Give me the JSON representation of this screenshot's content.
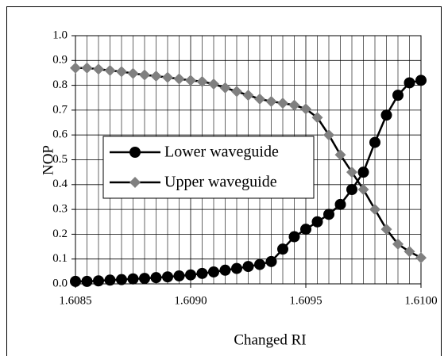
{
  "chart_data": {
    "type": "line",
    "x_label": "Changed RI",
    "y_label": "NOP",
    "x": [
      1.6085,
      1.60855,
      1.6086,
      1.60865,
      1.6087,
      1.60875,
      1.6088,
      1.60885,
      1.6089,
      1.60895,
      1.609,
      1.60905,
      1.6091,
      1.60915,
      1.6092,
      1.60925,
      1.6093,
      1.60935,
      1.6094,
      1.60945,
      1.6095,
      1.60955,
      1.6096,
      1.60965,
      1.6097,
      1.60975,
      1.6098,
      1.60985,
      1.6099,
      1.60995,
      1.61
    ],
    "series": [
      {
        "name": "Lower waveguide",
        "color": "#000000",
        "marker": "circle",
        "values": [
          0.01,
          0.01,
          0.012,
          0.015,
          0.017,
          0.02,
          0.022,
          0.025,
          0.028,
          0.032,
          0.036,
          0.042,
          0.048,
          0.055,
          0.062,
          0.07,
          0.078,
          0.09,
          0.14,
          0.19,
          0.22,
          0.25,
          0.28,
          0.32,
          0.38,
          0.45,
          0.57,
          0.68,
          0.76,
          0.81,
          0.82
        ]
      },
      {
        "name": "Upper waveguide",
        "color": "#808080",
        "marker": "diamond",
        "values": [
          0.87,
          0.87,
          0.865,
          0.86,
          0.855,
          0.848,
          0.842,
          0.837,
          0.832,
          0.826,
          0.82,
          0.815,
          0.805,
          0.79,
          0.775,
          0.76,
          0.745,
          0.735,
          0.728,
          0.72,
          0.705,
          0.67,
          0.6,
          0.52,
          0.45,
          0.38,
          0.3,
          0.22,
          0.16,
          0.13,
          0.105
        ]
      }
    ],
    "xlim": [
      1.6085,
      1.61
    ],
    "xticks": [
      1.6085,
      {
        "value": 1.609,
        "label": "1.6090"
      },
      1.6095,
      {
        "value": 1.61,
        "label": "1.6100"
      }
    ],
    "ylim": [
      0,
      1
    ],
    "yticks": [
      {
        "value": 0,
        "label": "0.0"
      },
      0.1,
      0.2,
      0.3,
      0.4,
      0.5,
      0.6,
      0.7,
      0.8,
      0.9,
      {
        "value": 1,
        "label": "1.0"
      }
    ],
    "grid": true
  }
}
